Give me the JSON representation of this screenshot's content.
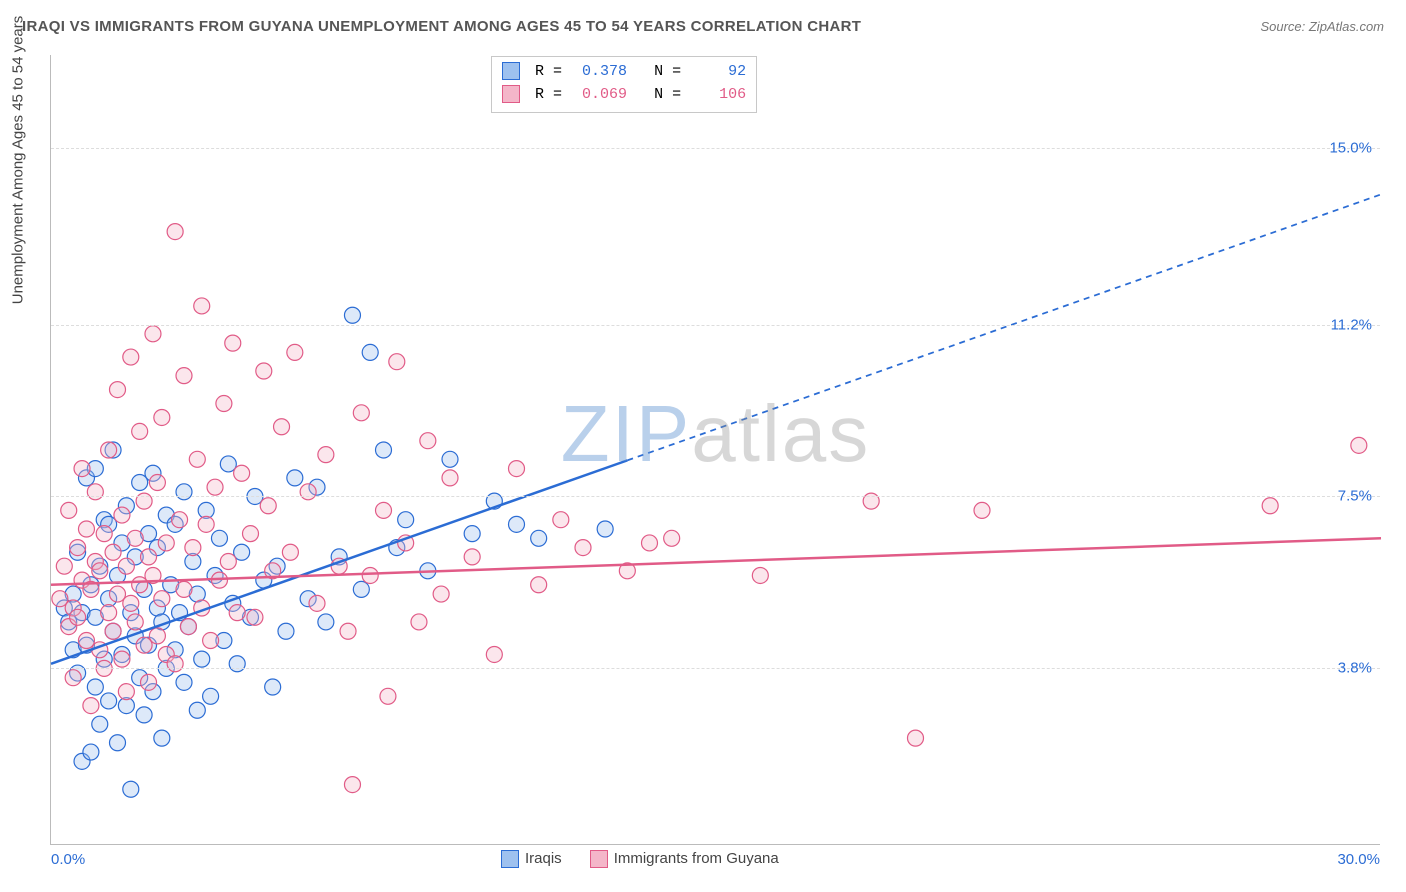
{
  "title": "IRAQI VS IMMIGRANTS FROM GUYANA UNEMPLOYMENT AMONG AGES 45 TO 54 YEARS CORRELATION CHART",
  "source": "Source: ZipAtlas.com",
  "yaxis_title": "Unemployment Among Ages 45 to 54 years",
  "watermark_a": "ZIP",
  "watermark_b": "atlas",
  "chart": {
    "type": "scatter",
    "xlim": [
      0,
      30
    ],
    "ylim": [
      0,
      17
    ],
    "x_tick_min_label": "0.0%",
    "x_tick_max_label": "30.0%",
    "y_ticks": [
      3.8,
      7.5,
      11.2,
      15.0
    ],
    "y_tick_labels": [
      "3.8%",
      "7.5%",
      "11.2%",
      "15.0%"
    ],
    "x_label_color": "#2b6cd4",
    "y_label_color": "#2b6cd4",
    "grid_color": "#dddddd",
    "axis_color": "#bbbbbb",
    "background": "#ffffff",
    "marker_radius": 8,
    "marker_stroke_width": 1.2,
    "marker_fill_opacity": 0.35,
    "trend_line_width": 2.5,
    "trend_dash": "6,5",
    "series": [
      {
        "name": "Iraqis",
        "color_stroke": "#2b6cd4",
        "color_fill": "#9ec1ef",
        "R": "0.378",
        "N": "92",
        "trend": {
          "x1": 0,
          "y1": 3.9,
          "x2": 30,
          "y2": 14.0,
          "solid_until_x": 13
        },
        "points": [
          [
            0.3,
            5.1
          ],
          [
            0.4,
            4.8
          ],
          [
            0.5,
            5.4
          ],
          [
            0.5,
            4.2
          ],
          [
            0.6,
            6.3
          ],
          [
            0.6,
            3.7
          ],
          [
            0.7,
            5.0
          ],
          [
            0.7,
            1.8
          ],
          [
            0.8,
            7.9
          ],
          [
            0.8,
            4.3
          ],
          [
            0.9,
            2.0
          ],
          [
            0.9,
            5.6
          ],
          [
            1.0,
            8.1
          ],
          [
            1.0,
            3.4
          ],
          [
            1.0,
            4.9
          ],
          [
            1.1,
            6.0
          ],
          [
            1.1,
            2.6
          ],
          [
            1.2,
            7.0
          ],
          [
            1.2,
            4.0
          ],
          [
            1.3,
            5.3
          ],
          [
            1.3,
            6.9
          ],
          [
            1.3,
            3.1
          ],
          [
            1.4,
            4.6
          ],
          [
            1.4,
            8.5
          ],
          [
            1.5,
            5.8
          ],
          [
            1.5,
            2.2
          ],
          [
            1.6,
            6.5
          ],
          [
            1.6,
            4.1
          ],
          [
            1.7,
            3.0
          ],
          [
            1.7,
            7.3
          ],
          [
            1.8,
            5.0
          ],
          [
            1.8,
            1.2
          ],
          [
            1.9,
            6.2
          ],
          [
            1.9,
            4.5
          ],
          [
            2.0,
            7.8
          ],
          [
            2.0,
            3.6
          ],
          [
            2.1,
            5.5
          ],
          [
            2.1,
            2.8
          ],
          [
            2.2,
            6.7
          ],
          [
            2.2,
            4.3
          ],
          [
            2.3,
            8.0
          ],
          [
            2.3,
            3.3
          ],
          [
            2.4,
            5.1
          ],
          [
            2.4,
            6.4
          ],
          [
            2.5,
            4.8
          ],
          [
            2.5,
            2.3
          ],
          [
            2.6,
            7.1
          ],
          [
            2.6,
            3.8
          ],
          [
            2.7,
            5.6
          ],
          [
            2.8,
            4.2
          ],
          [
            2.8,
            6.9
          ],
          [
            2.9,
            5.0
          ],
          [
            3.0,
            3.5
          ],
          [
            3.0,
            7.6
          ],
          [
            3.1,
            4.7
          ],
          [
            3.2,
            6.1
          ],
          [
            3.3,
            2.9
          ],
          [
            3.3,
            5.4
          ],
          [
            3.4,
            4.0
          ],
          [
            3.5,
            7.2
          ],
          [
            3.6,
            3.2
          ],
          [
            3.7,
            5.8
          ],
          [
            3.8,
            6.6
          ],
          [
            3.9,
            4.4
          ],
          [
            4.0,
            8.2
          ],
          [
            4.1,
            5.2
          ],
          [
            4.2,
            3.9
          ],
          [
            4.3,
            6.3
          ],
          [
            4.5,
            4.9
          ],
          [
            4.6,
            7.5
          ],
          [
            4.8,
            5.7
          ],
          [
            5.0,
            3.4
          ],
          [
            5.1,
            6.0
          ],
          [
            5.3,
            4.6
          ],
          [
            5.5,
            7.9
          ],
          [
            5.8,
            5.3
          ],
          [
            6.0,
            7.7
          ],
          [
            6.2,
            4.8
          ],
          [
            6.5,
            6.2
          ],
          [
            6.8,
            11.4
          ],
          [
            7.0,
            5.5
          ],
          [
            7.2,
            10.6
          ],
          [
            7.5,
            8.5
          ],
          [
            7.8,
            6.4
          ],
          [
            8.0,
            7.0
          ],
          [
            8.5,
            5.9
          ],
          [
            9.0,
            8.3
          ],
          [
            9.5,
            6.7
          ],
          [
            10.0,
            7.4
          ],
          [
            10.5,
            6.9
          ],
          [
            11.0,
            6.6
          ],
          [
            12.5,
            6.8
          ]
        ]
      },
      {
        "name": "Immigrants from Guyana",
        "color_stroke": "#e15b87",
        "color_fill": "#f4b6c9",
        "R": "0.069",
        "N": "106",
        "trend": {
          "x1": 0,
          "y1": 5.6,
          "x2": 30,
          "y2": 6.6,
          "solid_until_x": 30
        },
        "points": [
          [
            0.2,
            5.3
          ],
          [
            0.3,
            6.0
          ],
          [
            0.4,
            4.7
          ],
          [
            0.4,
            7.2
          ],
          [
            0.5,
            5.1
          ],
          [
            0.5,
            3.6
          ],
          [
            0.6,
            6.4
          ],
          [
            0.6,
            4.9
          ],
          [
            0.7,
            5.7
          ],
          [
            0.7,
            8.1
          ],
          [
            0.8,
            4.4
          ],
          [
            0.8,
            6.8
          ],
          [
            0.9,
            5.5
          ],
          [
            0.9,
            3.0
          ],
          [
            1.0,
            6.1
          ],
          [
            1.0,
            7.6
          ],
          [
            1.1,
            4.2
          ],
          [
            1.1,
            5.9
          ],
          [
            1.2,
            6.7
          ],
          [
            1.2,
            3.8
          ],
          [
            1.3,
            5.0
          ],
          [
            1.3,
            8.5
          ],
          [
            1.4,
            4.6
          ],
          [
            1.4,
            6.3
          ],
          [
            1.5,
            9.8
          ],
          [
            1.5,
            5.4
          ],
          [
            1.6,
            4.0
          ],
          [
            1.6,
            7.1
          ],
          [
            1.7,
            6.0
          ],
          [
            1.7,
            3.3
          ],
          [
            1.8,
            5.2
          ],
          [
            1.8,
            10.5
          ],
          [
            1.9,
            4.8
          ],
          [
            1.9,
            6.6
          ],
          [
            2.0,
            5.6
          ],
          [
            2.0,
            8.9
          ],
          [
            2.1,
            4.3
          ],
          [
            2.1,
            7.4
          ],
          [
            2.2,
            6.2
          ],
          [
            2.2,
            3.5
          ],
          [
            2.3,
            5.8
          ],
          [
            2.3,
            11.0
          ],
          [
            2.4,
            4.5
          ],
          [
            2.4,
            7.8
          ],
          [
            2.5,
            5.3
          ],
          [
            2.5,
            9.2
          ],
          [
            2.6,
            6.5
          ],
          [
            2.6,
            4.1
          ],
          [
            2.8,
            13.2
          ],
          [
            2.8,
            3.9
          ],
          [
            2.9,
            7.0
          ],
          [
            3.0,
            5.5
          ],
          [
            3.0,
            10.1
          ],
          [
            3.1,
            4.7
          ],
          [
            3.2,
            6.4
          ],
          [
            3.3,
            8.3
          ],
          [
            3.4,
            11.6
          ],
          [
            3.4,
            5.1
          ],
          [
            3.5,
            6.9
          ],
          [
            3.6,
            4.4
          ],
          [
            3.7,
            7.7
          ],
          [
            3.8,
            5.7
          ],
          [
            3.9,
            9.5
          ],
          [
            4.0,
            6.1
          ],
          [
            4.1,
            10.8
          ],
          [
            4.2,
            5.0
          ],
          [
            4.3,
            8.0
          ],
          [
            4.5,
            6.7
          ],
          [
            4.6,
            4.9
          ],
          [
            4.8,
            10.2
          ],
          [
            4.9,
            7.3
          ],
          [
            5.0,
            5.9
          ],
          [
            5.2,
            9.0
          ],
          [
            5.4,
            6.3
          ],
          [
            5.5,
            10.6
          ],
          [
            5.8,
            7.6
          ],
          [
            6.0,
            5.2
          ],
          [
            6.2,
            8.4
          ],
          [
            6.5,
            6.0
          ],
          [
            6.7,
            4.6
          ],
          [
            6.8,
            1.3
          ],
          [
            7.0,
            9.3
          ],
          [
            7.2,
            5.8
          ],
          [
            7.5,
            7.2
          ],
          [
            7.6,
            3.2
          ],
          [
            7.8,
            10.4
          ],
          [
            8.0,
            6.5
          ],
          [
            8.3,
            4.8
          ],
          [
            8.5,
            8.7
          ],
          [
            8.8,
            5.4
          ],
          [
            9.0,
            7.9
          ],
          [
            9.5,
            6.2
          ],
          [
            10.0,
            4.1
          ],
          [
            10.5,
            8.1
          ],
          [
            11.0,
            5.6
          ],
          [
            11.5,
            7.0
          ],
          [
            12.0,
            6.4
          ],
          [
            13.0,
            5.9
          ],
          [
            14.0,
            6.6
          ],
          [
            16.0,
            5.8
          ],
          [
            18.5,
            7.4
          ],
          [
            19.5,
            2.3
          ],
          [
            21.0,
            7.2
          ],
          [
            27.5,
            7.3
          ],
          [
            29.5,
            8.6
          ],
          [
            13.5,
            6.5
          ]
        ]
      }
    ]
  },
  "legend": {
    "labels": [
      "Iraqis",
      "Immigrants from Guyana"
    ]
  },
  "stats": {
    "labels": {
      "R": "R =",
      "N": "N ="
    }
  }
}
